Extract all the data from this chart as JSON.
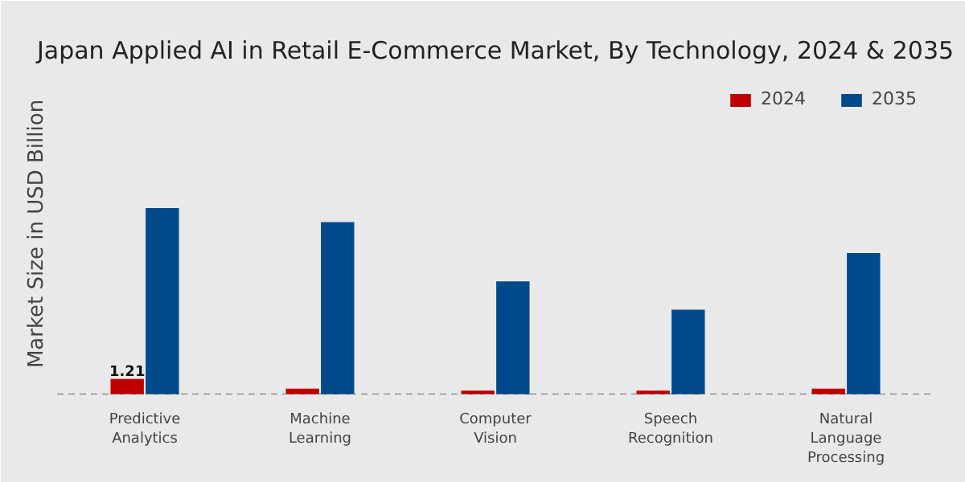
{
  "chart_data": {
    "type": "bar",
    "title": "Japan Applied AI in Retail E-Commerce Market, By Technology, 2024 & 2035",
    "ylabel": "Market Size in USD Billion",
    "categories": [
      "Predictive Analytics",
      "Machine Learning",
      "Computer Vision",
      "Speech Recognition",
      "Natural Language Processing"
    ],
    "ylim": [
      0,
      25
    ],
    "tick_labels": "x",
    "series": [
      {
        "name": "2024",
        "color": "#c00000",
        "values": [
          1.21,
          0.45,
          0.3,
          0.3,
          0.45
        ],
        "value_labels": [
          "1.21",
          null,
          null,
          null,
          null
        ]
      },
      {
        "name": "2035",
        "color": "#004a8c",
        "values": [
          14.5,
          13.4,
          8.8,
          6.6,
          11.0
        ]
      }
    ],
    "legend": "top right"
  }
}
